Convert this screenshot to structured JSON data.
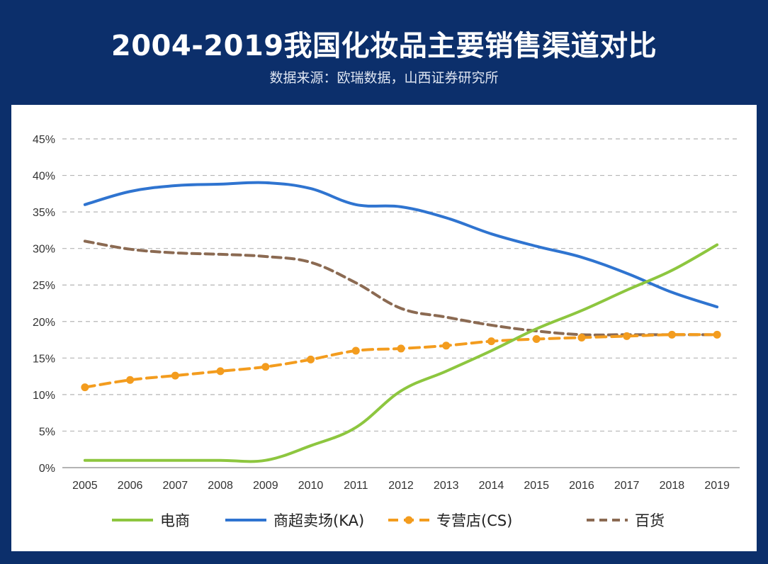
{
  "header": {
    "title": "2004-2019我国化妆品主要销售渠道对比",
    "subtitle": "数据来源：欧瑞数据，山西证券研究所"
  },
  "chart_data": {
    "type": "line",
    "title": "2004-2019我国化妆品主要销售渠道对比",
    "subtitle": "数据来源：欧瑞数据，山西证券研究所",
    "x": [
      "2005",
      "2006",
      "2007",
      "2008",
      "2009",
      "2010",
      "2011",
      "2012",
      "2013",
      "2014",
      "2015",
      "2016",
      "2017",
      "2018",
      "2019"
    ],
    "yticks": [
      "0%",
      "5%",
      "10%",
      "15%",
      "20%",
      "25%",
      "30%",
      "35%",
      "40%",
      "45%"
    ],
    "ylim": [
      0,
      45
    ],
    "grid": true,
    "legend_position": "bottom",
    "series": [
      {
        "name": "电商",
        "color": "#8dc63f",
        "style": "solid",
        "values": [
          1.0,
          1.0,
          1.0,
          1.0,
          1.0,
          3.0,
          5.5,
          10.5,
          13.2,
          16.0,
          19.0,
          21.5,
          24.3,
          27.0,
          30.5
        ]
      },
      {
        "name": "商超卖场(KA)",
        "color": "#2f74d0",
        "style": "solid",
        "values": [
          36.0,
          37.8,
          38.6,
          38.8,
          39.0,
          38.2,
          36.0,
          35.7,
          34.2,
          32.0,
          30.3,
          28.8,
          26.6,
          24.0,
          22.0
        ]
      },
      {
        "name": "专营店(CS)",
        "color": "#f39c1e",
        "style": "dash-dot-marker",
        "values": [
          11.0,
          12.0,
          12.6,
          13.2,
          13.8,
          14.8,
          16.0,
          16.3,
          16.7,
          17.3,
          17.6,
          17.8,
          18.0,
          18.2,
          18.2
        ]
      },
      {
        "name": "百货",
        "color": "#8b6a52",
        "style": "dashed",
        "values": [
          31.0,
          29.9,
          29.4,
          29.2,
          28.9,
          28.1,
          25.3,
          21.8,
          20.6,
          19.5,
          18.7,
          18.2,
          18.2,
          18.2,
          18.2
        ]
      }
    ]
  }
}
